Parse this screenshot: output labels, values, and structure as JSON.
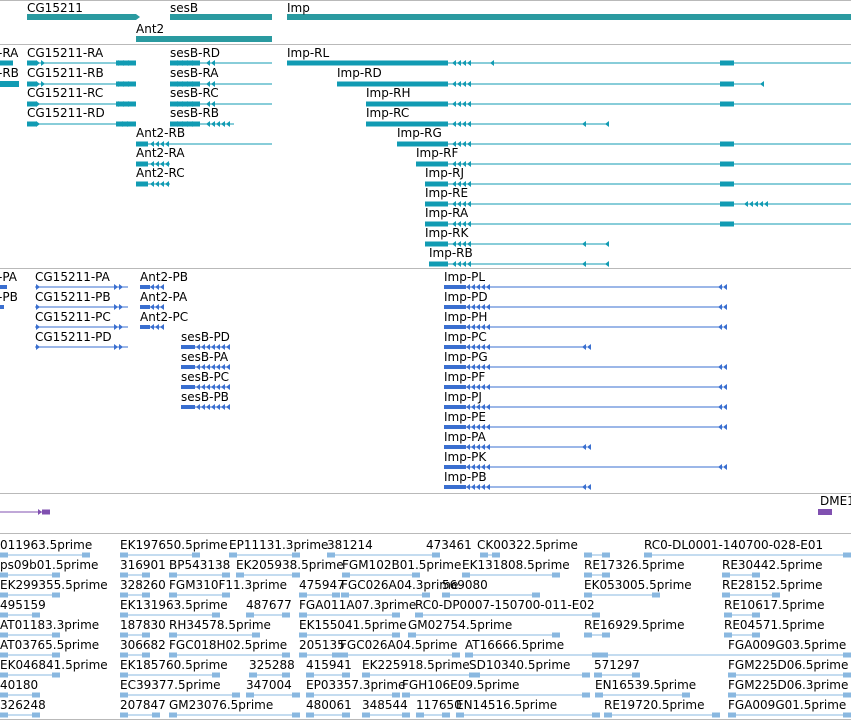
{
  "genes": [
    {
      "label": "CG15211"
    },
    {
      "label": "sesB"
    },
    {
      "label": "Imp"
    },
    {
      "label": "Ant2"
    }
  ],
  "mrna_transcripts": [
    {
      "label": "-RA"
    },
    {
      "label": "-RB"
    },
    {
      "label": "CG15211-RA"
    },
    {
      "label": "CG15211-RB"
    },
    {
      "label": "CG15211-RC"
    },
    {
      "label": "CG15211-RD"
    },
    {
      "label": "sesB-RD"
    },
    {
      "label": "sesB-RA"
    },
    {
      "label": "sesB-RC"
    },
    {
      "label": "sesB-RB"
    },
    {
      "label": "Ant2-RB"
    },
    {
      "label": "Ant2-RA"
    },
    {
      "label": "Ant2-RC"
    },
    {
      "label": "Imp-RL"
    },
    {
      "label": "Imp-RD"
    },
    {
      "label": "Imp-RH"
    },
    {
      "label": "Imp-RC"
    },
    {
      "label": "Imp-RG"
    },
    {
      "label": "Imp-RF"
    },
    {
      "label": "Imp-RJ"
    },
    {
      "label": "Imp-RE"
    },
    {
      "label": "Imp-RA"
    },
    {
      "label": "Imp-RK"
    },
    {
      "label": "Imp-RB"
    }
  ],
  "protein_products": [
    {
      "label": "-PA"
    },
    {
      "label": "-PB"
    },
    {
      "label": "CG15211-PA"
    },
    {
      "label": "CG15211-PB"
    },
    {
      "label": "CG15211-PC"
    },
    {
      "label": "CG15211-PD"
    },
    {
      "label": "Ant2-PB"
    },
    {
      "label": "Ant2-PA"
    },
    {
      "label": "Ant2-PC"
    },
    {
      "label": "sesB-PD"
    },
    {
      "label": "sesB-PA"
    },
    {
      "label": "sesB-PC"
    },
    {
      "label": "sesB-PB"
    },
    {
      "label": "Imp-PL"
    },
    {
      "label": "Imp-PD"
    },
    {
      "label": "Imp-PH"
    },
    {
      "label": "Imp-PC"
    },
    {
      "label": "Imp-PG"
    },
    {
      "label": "Imp-PF"
    },
    {
      "label": "Imp-PJ"
    },
    {
      "label": "Imp-PE"
    },
    {
      "label": "Imp-PA"
    },
    {
      "label": "Imp-PK"
    },
    {
      "label": "Imp-PB"
    }
  ],
  "other_track": {
    "label": "DME1"
  },
  "est_rows": [
    [
      "011963.5prime",
      "EK197650.5prime",
      "EP11131.3prime",
      "381214",
      "473461",
      "CK00322.5prime",
      "RC0-DL0001-140700-028-E01"
    ],
    [
      "ps09b01.5prime",
      "316901",
      "BP543138",
      "EK205938.5prime",
      "FGM102B01.5prime",
      "EK131808.5prime",
      "RE17326.5prime",
      "RE30442.5prime"
    ],
    [
      "EK299355.5prime",
      "328260",
      "FGM310F11.3prime",
      "475947",
      "FGC026A04.3prime",
      "569080",
      "EK053005.5prime",
      "RE28152.5prime"
    ],
    [
      "495159",
      "EK131963.5prime",
      "487677",
      "FGA011A07.3prime",
      "RC0-DP0007-150700-011-E02",
      "RE10617.5prime"
    ],
    [
      "AT01183.3prime",
      "187830",
      "RH34578.5prime",
      "EK155041.5prime",
      "GM02754.5prime",
      "RE16929.5prime",
      "RE04571.5prime"
    ],
    [
      "AT03765.5prime",
      "306682",
      "FGC018H02.5prime",
      "205135",
      "FGC026A04.5prime",
      "AT16666.5prime",
      "FGA009G03.5prime"
    ],
    [
      "EK046841.5prime",
      "EK185760.5prime",
      "325288",
      "415941",
      "EK225918.5prime",
      "SD10340.5prime",
      "571297",
      "FGM225D06.5prime"
    ],
    [
      "40180",
      "EC39377.5prime",
      "347004",
      "EP03357.3prime",
      "FGH106E09.5prime",
      "EN16539.5prime",
      "FGM225D06.3prime"
    ],
    [
      "326248",
      "207847",
      "GM23076.5prime",
      "480061",
      "348544",
      "117650",
      "EN14516.5prime",
      "RE19720.5prime",
      "FGA009G01.5prime"
    ]
  ],
  "colors": {
    "gene": "#2a9aa0",
    "mrna": "#119bb3",
    "protein": "#3a6fd0",
    "other": "#8050b0",
    "est": "#8ab8e0",
    "separator": "#b9b9b9"
  }
}
